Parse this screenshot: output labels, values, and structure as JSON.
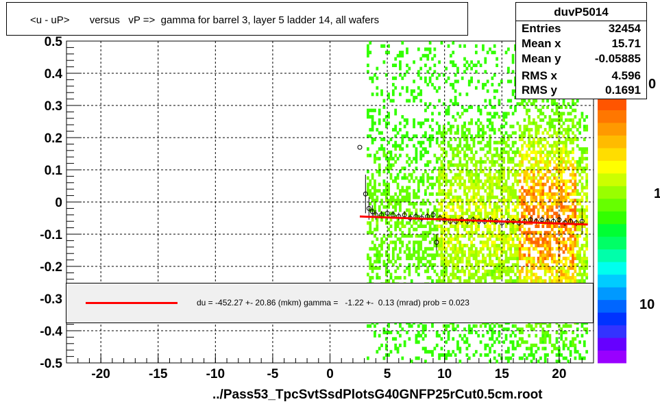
{
  "title": "<u - uP>       versus   vP =>  gamma for barrel 3, layer 5 ladder 14, all wafers",
  "stats": {
    "name": "duvP5014",
    "rows": [
      {
        "key": "Entries",
        "value": "32454"
      },
      {
        "key": "Mean x",
        "value": "15.71"
      },
      {
        "key": "Mean y",
        "value": "-0.05885"
      },
      {
        "key": "RMS x",
        "value": "4.596"
      },
      {
        "key": "RMS y",
        "value": "0.1691"
      }
    ]
  },
  "x_axis_title": "../Pass53_TpcSvtSsdPlotsG40GNFP25rCut0.5cm.root",
  "legend": {
    "text": "du = -452.27 +- 20.86 (mkm) gamma =   -1.22 +-  0.13 (mrad) prob = 0.023",
    "line_color": "#ff0000"
  },
  "color_scale": {
    "labels": [
      "0",
      "1",
      "10"
    ],
    "colors": [
      "#9900ff",
      "#6600ff",
      "#3333ff",
      "#0033ff",
      "#0066ff",
      "#0099ff",
      "#00ccff",
      "#00ffee",
      "#00ffaa",
      "#00ff66",
      "#00ff33",
      "#33ff00",
      "#66ff00",
      "#99ff00",
      "#ccff00",
      "#ffff00",
      "#ffdd00",
      "#ffbb00",
      "#ff9900",
      "#ff7700",
      "#ff5500"
    ]
  },
  "chart_data": {
    "type": "scatter",
    "xlim": [
      -23,
      23
    ],
    "ylim": [
      -0.5,
      0.5
    ],
    "x_ticks": [
      "-20",
      "-15",
      "-10",
      "-5",
      "0",
      "5",
      "10",
      "15",
      "20"
    ],
    "y_ticks": [
      "-0.5",
      "-0.4",
      "-0.3",
      "-0.2",
      "-0.1",
      "0",
      "0.1",
      "0.2",
      "0.3",
      "0.4",
      "0.5"
    ],
    "grid": true,
    "heatmap_x_range": [
      3.2,
      22.5
    ],
    "profile_points": [
      {
        "x": 2.6,
        "y": 0.17,
        "err": 0.0
      },
      {
        "x": 3.1,
        "y": 0.025,
        "err": 0.06
      },
      {
        "x": 3.4,
        "y": -0.02,
        "err": 0.035
      },
      {
        "x": 3.7,
        "y": -0.03,
        "err": 0.02
      },
      {
        "x": 4.0,
        "y": -0.04,
        "err": 0.015
      },
      {
        "x": 4.5,
        "y": -0.04,
        "err": 0.012
      },
      {
        "x": 5.0,
        "y": -0.035,
        "err": 0.012
      },
      {
        "x": 5.5,
        "y": -0.04,
        "err": 0.012
      },
      {
        "x": 6.0,
        "y": -0.045,
        "err": 0.012
      },
      {
        "x": 6.5,
        "y": -0.04,
        "err": 0.012
      },
      {
        "x": 7.0,
        "y": -0.05,
        "err": 0.012
      },
      {
        "x": 7.5,
        "y": -0.045,
        "err": 0.012
      },
      {
        "x": 8.0,
        "y": -0.05,
        "err": 0.012
      },
      {
        "x": 8.5,
        "y": -0.045,
        "err": 0.012
      },
      {
        "x": 9.0,
        "y": -0.04,
        "err": 0.012
      },
      {
        "x": 9.3,
        "y": -0.125,
        "err": 0.025
      },
      {
        "x": 9.6,
        "y": -0.05,
        "err": 0.012
      },
      {
        "x": 10.0,
        "y": -0.055,
        "err": 0.01
      },
      {
        "x": 10.5,
        "y": -0.06,
        "err": 0.01
      },
      {
        "x": 11.0,
        "y": -0.06,
        "err": 0.01
      },
      {
        "x": 11.5,
        "y": -0.055,
        "err": 0.01
      },
      {
        "x": 12.0,
        "y": -0.06,
        "err": 0.01
      },
      {
        "x": 12.5,
        "y": -0.055,
        "err": 0.01
      },
      {
        "x": 13.0,
        "y": -0.06,
        "err": 0.01
      },
      {
        "x": 13.5,
        "y": -0.06,
        "err": 0.01
      },
      {
        "x": 14.0,
        "y": -0.055,
        "err": 0.01
      },
      {
        "x": 14.5,
        "y": -0.06,
        "err": 0.01
      },
      {
        "x": 15.0,
        "y": -0.065,
        "err": 0.01
      },
      {
        "x": 15.5,
        "y": -0.06,
        "err": 0.01
      },
      {
        "x": 16.0,
        "y": -0.06,
        "err": 0.01
      },
      {
        "x": 16.5,
        "y": -0.065,
        "err": 0.01
      },
      {
        "x": 17.0,
        "y": -0.06,
        "err": 0.01
      },
      {
        "x": 17.5,
        "y": -0.055,
        "err": 0.01
      },
      {
        "x": 18.0,
        "y": -0.06,
        "err": 0.01
      },
      {
        "x": 18.5,
        "y": -0.055,
        "err": 0.01
      },
      {
        "x": 19.0,
        "y": -0.06,
        "err": 0.01
      },
      {
        "x": 19.5,
        "y": -0.06,
        "err": 0.01
      },
      {
        "x": 20.0,
        "y": -0.055,
        "err": 0.01
      },
      {
        "x": 20.5,
        "y": -0.065,
        "err": 0.01
      },
      {
        "x": 21.0,
        "y": -0.06,
        "err": 0.01
      },
      {
        "x": 21.5,
        "y": -0.065,
        "err": 0.01
      },
      {
        "x": 22.0,
        "y": -0.06,
        "err": 0.04
      }
    ],
    "fit_line": {
      "x": [
        2.6,
        22.5
      ],
      "y": [
        -0.045,
        -0.07
      ],
      "color": "#ff0000"
    }
  }
}
